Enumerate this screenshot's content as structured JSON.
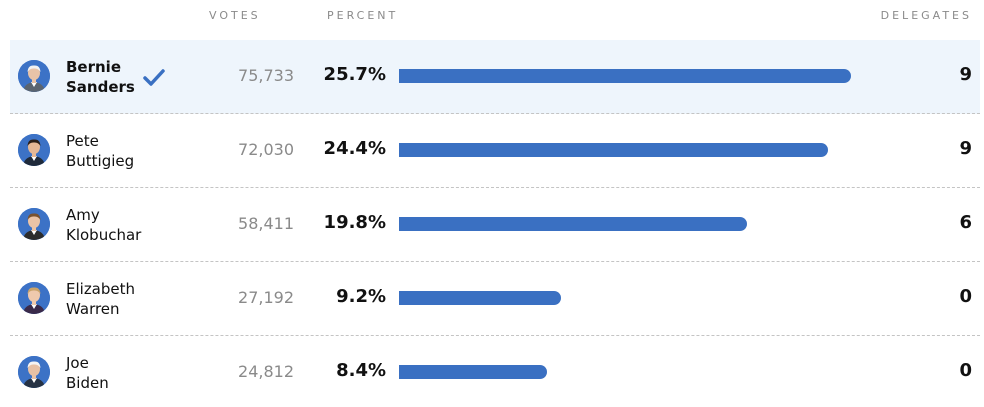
{
  "header": {
    "votes_label": "VOTES",
    "percent_label": "PERCENT",
    "delegates_label": "DELEGATES"
  },
  "colors": {
    "bar": "#3a70c2",
    "winner_bg": "#eef5fc",
    "check": "#3a70c2"
  },
  "rows": [
    {
      "first": "Bernie",
      "last": "Sanders",
      "votes": "75,733",
      "percent": "25.7%",
      "delegates": "9",
      "winner": true
    },
    {
      "first": "Pete",
      "last": "Buttigieg",
      "votes": "72,030",
      "percent": "24.4%",
      "delegates": "9",
      "winner": false
    },
    {
      "first": "Amy",
      "last": "Klobuchar",
      "votes": "58,411",
      "percent": "19.8%",
      "delegates": "6",
      "winner": false
    },
    {
      "first": "Elizabeth",
      "last": "Warren",
      "votes": "27,192",
      "percent": "9.2%",
      "delegates": "0",
      "winner": false
    },
    {
      "first": "Joe",
      "last": "Biden",
      "votes": "24,812",
      "percent": "8.4%",
      "delegates": "0",
      "winner": false
    }
  ],
  "chart_data": {
    "type": "bar",
    "categories": [
      "Bernie Sanders",
      "Pete Buttigieg",
      "Amy Klobuchar",
      "Elizabeth Warren",
      "Joe Biden"
    ],
    "series": [
      {
        "values": [
          25.7,
          24.4,
          19.8,
          9.2,
          8.4
        ]
      }
    ],
    "votes": [
      75733,
      72030,
      58411,
      27192,
      24812
    ],
    "delegates": [
      9,
      9,
      6,
      0,
      0
    ],
    "orientation": "horizontal",
    "xlim": [
      0,
      25.7
    ],
    "grid": false
  }
}
